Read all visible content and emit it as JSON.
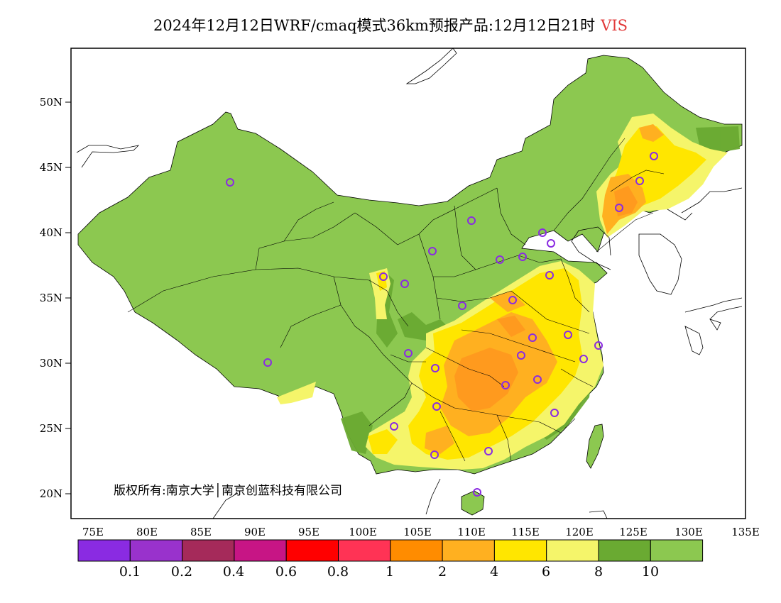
{
  "header": {
    "title": "2024年12月12日WRF/cmaq模式36km预报产品:12月12日21时",
    "variable": "VIS"
  },
  "map": {
    "lat_ticks": [
      "50N",
      "45N",
      "40N",
      "35N",
      "30N",
      "25N",
      "20N"
    ],
    "lon_ticks": [
      "75E",
      "80E",
      "85E",
      "90E",
      "95E",
      "100E",
      "105E",
      "110E",
      "115E",
      "120E",
      "125E",
      "130E",
      "135E"
    ],
    "copyright": "版权所有:南京大学│南京创蓝科技有限公司"
  },
  "legend": {
    "colors": [
      "#8a2be2",
      "#9932cc",
      "#a52a5a",
      "#c71585",
      "#ff0000",
      "#ff3355",
      "#ff8c00",
      "#ffb020",
      "#ffe600",
      "#f5f56a",
      "#6aaa32",
      "#8cc850"
    ],
    "labels": [
      "0.1",
      "0.2",
      "0.4",
      "0.6",
      "0.8",
      "1",
      "2",
      "4",
      "6",
      "8",
      "10"
    ]
  },
  "colors": {
    "base_green": "#8cc850",
    "dark_green": "#6aaa32",
    "light_yellow": "#f5f56a",
    "yellow": "#ffe600",
    "orange_light": "#ffb020",
    "orange": "#ff9a1e",
    "station_circle": "#8a2be2"
  }
}
